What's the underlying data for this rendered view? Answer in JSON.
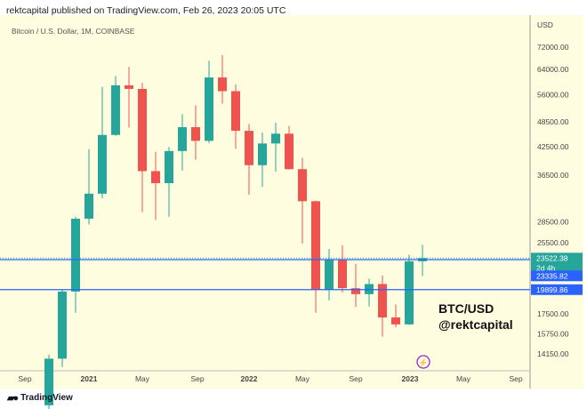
{
  "header": {
    "publisher_line": "rektcapital published on TradingView.com, Feb 26, 2023 20:05 UTC"
  },
  "symbol_line": "Bitcoin / U.S. Dollar, 1M, COINBASE",
  "footer": {
    "brand": "TradingView",
    "icon": "tradingview-logo-icon"
  },
  "annotation": {
    "line1": "BTC/USD",
    "line2": "@rektcapital"
  },
  "colors": {
    "up": "#26a69a",
    "down": "#ef5350",
    "level": "#2962ff",
    "background": "#fffde0"
  },
  "chart_data": {
    "type": "candlestick",
    "scale": "log",
    "ylabel": "USD",
    "ylim": [
      13000,
      80000
    ],
    "y_ticks": [
      72000,
      64000,
      56000,
      48500,
      42500,
      36500,
      28500,
      25500,
      17500,
      15750,
      14150
    ],
    "x_ticks": [
      "Sep",
      "2021",
      "May",
      "Sep",
      "2022",
      "May",
      "Sep",
      "2023",
      "May",
      "Sep"
    ],
    "candles": [
      [
        "Oct 2020",
        10777,
        14100,
        10550,
        13800
      ],
      [
        "Nov 2020",
        13800,
        19860,
        13200,
        19700
      ],
      [
        "Dec 2020",
        19700,
        29300,
        17600,
        28990
      ],
      [
        "Jan 2021",
        28990,
        41950,
        28130,
        33100
      ],
      [
        "Feb 2021",
        33100,
        58350,
        32300,
        45200
      ],
      [
        "Mar 2021",
        45200,
        61800,
        45000,
        58800
      ],
      [
        "Apr 2021",
        58800,
        64850,
        47000,
        57700
      ],
      [
        "May 2021",
        57700,
        59600,
        30000,
        37300
      ],
      [
        "Jun 2021",
        37300,
        41300,
        28800,
        35000
      ],
      [
        "Jul 2021",
        35000,
        42400,
        29300,
        41500
      ],
      [
        "Aug 2021",
        41500,
        50500,
        37400,
        47100
      ],
      [
        "Sep 2021",
        47100,
        52900,
        39600,
        43800
      ],
      [
        "Oct 2021",
        43800,
        67000,
        43300,
        61300
      ],
      [
        "Nov 2021",
        61300,
        69000,
        53300,
        57000
      ],
      [
        "Dec 2021",
        57000,
        59100,
        42000,
        46200
      ],
      [
        "Jan 2022",
        46200,
        47900,
        32900,
        38500
      ],
      [
        "Feb 2022",
        38500,
        45800,
        34300,
        43200
      ],
      [
        "Mar 2022",
        43200,
        48200,
        37200,
        45500
      ],
      [
        "Apr 2022",
        45500,
        47400,
        37600,
        37700
      ],
      [
        "May 2022",
        37700,
        40000,
        25400,
        31800
      ],
      [
        "Jun 2022",
        31800,
        31900,
        17600,
        19900
      ],
      [
        "Jul 2022",
        19900,
        24700,
        18800,
        23300
      ],
      [
        "Aug 2022",
        23300,
        25200,
        19600,
        20050
      ],
      [
        "Sep 2022",
        20050,
        22800,
        18150,
        19430
      ],
      [
        "Oct 2022",
        19430,
        21100,
        18200,
        20500
      ],
      [
        "Nov 2022",
        20500,
        21450,
        15500,
        17170
      ],
      [
        "Dec 2022",
        17170,
        18400,
        16300,
        16550
      ],
      [
        "Jan 2023",
        16550,
        23950,
        16500,
        23130
      ],
      [
        "Feb 2023",
        23130,
        25250,
        21400,
        23522.38
      ]
    ],
    "horizontal_levels": [
      23335.82,
      19899.86
    ],
    "last_price": {
      "value": "23522.38",
      "countdown": "2d 4h"
    },
    "level_labels": [
      "23335.82",
      "19899.86"
    ]
  }
}
